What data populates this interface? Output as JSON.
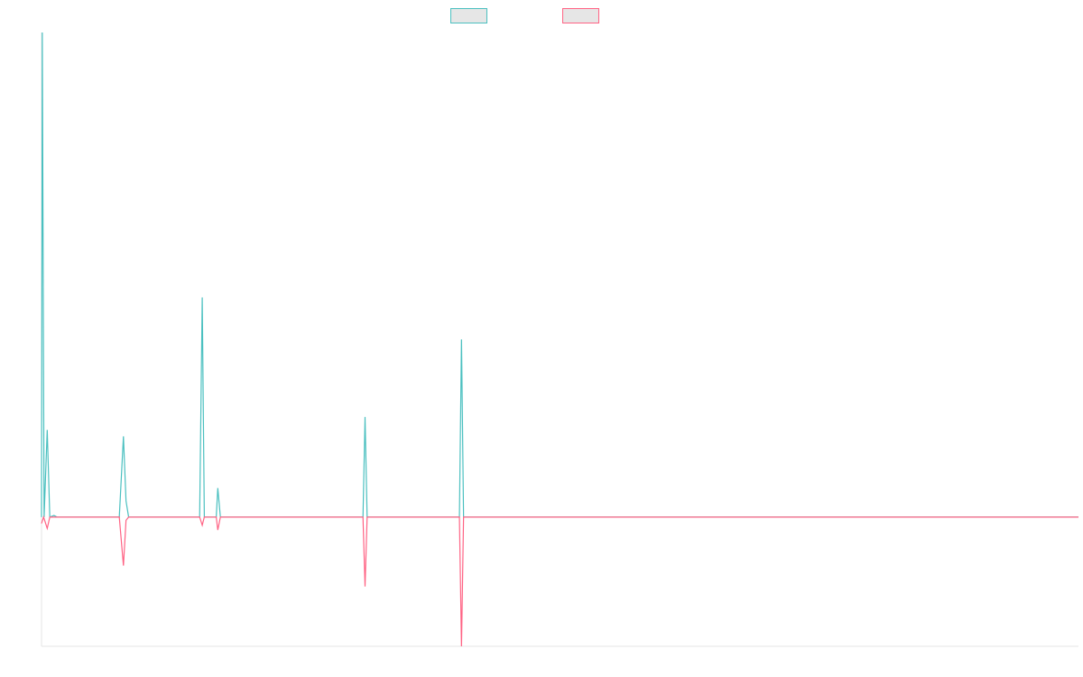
{
  "chart_data": {
    "type": "line",
    "title": "",
    "xlabel": "",
    "ylabel": "",
    "grid": false,
    "legend_position": "top",
    "x": [
      0,
      1,
      2,
      3,
      4,
      5,
      6,
      7,
      8,
      9,
      10,
      11,
      12,
      13,
      14,
      15,
      16,
      17,
      18,
      19,
      20,
      21,
      22,
      23,
      24,
      25,
      26,
      27,
      28,
      29,
      30,
      31,
      32,
      33,
      34,
      35,
      36,
      37,
      38,
      39,
      40,
      41,
      42,
      43,
      44,
      45,
      46,
      47,
      48,
      49,
      50,
      51,
      52,
      53,
      54,
      55,
      56,
      57,
      58,
      59,
      60,
      61,
      62,
      63,
      64,
      65,
      66,
      67,
      68,
      69,
      70,
      71,
      72,
      73,
      74,
      75,
      76,
      77,
      78,
      79,
      80,
      81,
      82,
      83,
      84,
      85,
      86,
      87,
      88,
      89,
      90,
      91,
      92,
      93,
      94,
      95,
      96,
      97,
      98,
      99,
      100,
      101,
      102,
      103,
      104,
      105,
      106,
      107,
      108,
      109,
      110,
      111,
      112,
      113,
      114,
      115,
      116,
      117,
      118,
      119,
      120,
      121,
      122,
      123,
      124,
      125,
      126,
      127,
      128,
      129,
      130,
      131,
      132,
      133,
      134,
      135,
      136,
      137,
      138,
      139,
      140,
      141,
      142,
      143,
      144,
      145,
      146,
      147,
      148,
      149,
      150,
      151,
      152,
      153,
      154,
      155,
      156,
      157,
      158,
      159,
      160,
      161,
      162,
      163,
      164,
      165,
      166,
      167,
      168,
      169,
      170,
      171,
      172,
      173,
      174,
      175,
      176,
      177,
      178,
      179,
      180,
      181,
      182,
      183,
      184,
      185,
      186,
      187,
      188,
      189,
      190,
      191,
      192,
      193,
      194,
      195,
      196,
      197,
      198,
      199,
      200
    ],
    "ylim": [
      -4,
      15
    ],
    "xlim": [
      0,
      200
    ],
    "series": [
      {
        "name": "",
        "color": "#4bc0c0",
        "points": [
          [
            0,
            0
          ],
          [
            0.15,
            15
          ],
          [
            0.5,
            0
          ],
          [
            1.1,
            2.7
          ],
          [
            1.6,
            0
          ],
          [
            2.4,
            0.05
          ],
          [
            3,
            0
          ],
          [
            15,
            0
          ],
          [
            15.8,
            2.5
          ],
          [
            16.3,
            0.5
          ],
          [
            16.8,
            0
          ],
          [
            30.5,
            0
          ],
          [
            31,
            6.8
          ],
          [
            31.4,
            0
          ],
          [
            33.7,
            0
          ],
          [
            34,
            0.9
          ],
          [
            34.5,
            0
          ],
          [
            62,
            0
          ],
          [
            62.4,
            3.1
          ],
          [
            62.8,
            0
          ],
          [
            80.6,
            0
          ],
          [
            81,
            5.5
          ],
          [
            81.4,
            0
          ],
          [
            200,
            0
          ]
        ]
      },
      {
        "name": "",
        "color": "#ff6384",
        "points": [
          [
            0,
            -0.2
          ],
          [
            0.4,
            0
          ],
          [
            1.1,
            -0.35
          ],
          [
            1.6,
            0
          ],
          [
            15,
            0
          ],
          [
            15.8,
            -1.5
          ],
          [
            16.3,
            -0.1
          ],
          [
            16.8,
            0
          ],
          [
            30.5,
            0
          ],
          [
            31,
            -0.25
          ],
          [
            31.4,
            0
          ],
          [
            33.7,
            0
          ],
          [
            34,
            -0.4
          ],
          [
            34.5,
            0
          ],
          [
            62,
            0
          ],
          [
            62.4,
            -2.15
          ],
          [
            62.8,
            0
          ],
          [
            80.6,
            0
          ],
          [
            81,
            -4
          ],
          [
            81.4,
            0
          ],
          [
            200,
            0
          ]
        ]
      }
    ]
  }
}
